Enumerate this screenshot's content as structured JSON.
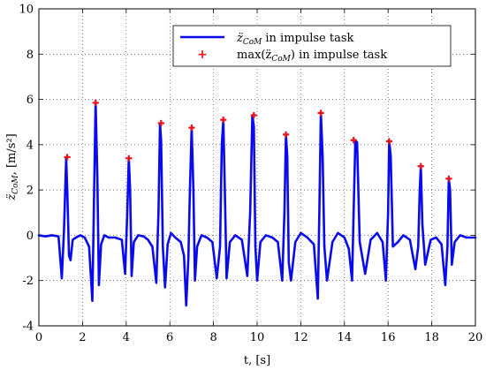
{
  "chart_data": {
    "type": "line",
    "title": "",
    "xlabel": "t, [s]",
    "ylabel": "z̈",
    "ylabel_sub": "CoM",
    "ylabel_unit": ", [m/s²]",
    "xlim": [
      0,
      20
    ],
    "ylim": [
      -4,
      10
    ],
    "xticks": [
      0,
      2,
      4,
      6,
      8,
      10,
      12,
      14,
      16,
      18,
      20
    ],
    "yticks": [
      -4,
      -2,
      0,
      2,
      4,
      6,
      8,
      10
    ],
    "grid": true,
    "legend_position": "top-right",
    "colors": {
      "line": "#0a0aef",
      "marker": "#e8121b",
      "grid": "#000000"
    },
    "series": [
      {
        "name": "z̈CoM in impulse task",
        "name_main": "z̈",
        "name_sub": "CoM",
        "name_rest": "in impulse task",
        "x": [
          0,
          0.3,
          0.6,
          0.9,
          1.05,
          1.15,
          1.25,
          1.3,
          1.38,
          1.45,
          1.55,
          1.7,
          1.9,
          2.1,
          2.3,
          2.45,
          2.55,
          2.6,
          2.68,
          2.75,
          2.85,
          3.0,
          3.2,
          3.5,
          3.8,
          3.95,
          4.05,
          4.12,
          4.18,
          4.25,
          4.35,
          4.55,
          4.8,
          5.0,
          5.2,
          5.38,
          5.48,
          5.55,
          5.6,
          5.68,
          5.78,
          5.9,
          6.05,
          6.25,
          6.5,
          6.65,
          6.75,
          6.85,
          6.92,
          7.0,
          7.08,
          7.15,
          7.25,
          7.45,
          7.7,
          7.95,
          8.15,
          8.3,
          8.38,
          8.45,
          8.52,
          8.6,
          8.75,
          9.0,
          9.3,
          9.55,
          9.68,
          9.78,
          9.85,
          9.92,
          10.0,
          10.15,
          10.4,
          10.7,
          10.95,
          11.15,
          11.25,
          11.32,
          11.38,
          11.45,
          11.55,
          11.75,
          12.0,
          12.3,
          12.6,
          12.78,
          12.85,
          12.92,
          13.0,
          13.08,
          13.2,
          13.45,
          13.7,
          14.0,
          14.2,
          14.35,
          14.42,
          14.5,
          14.58,
          14.7,
          14.95,
          15.2,
          15.5,
          15.75,
          15.9,
          16.0,
          16.05,
          16.12,
          16.22,
          16.45,
          16.7,
          17.0,
          17.25,
          17.38,
          17.45,
          17.5,
          17.57,
          17.7,
          17.95,
          18.2,
          18.45,
          18.62,
          18.72,
          18.78,
          18.84,
          18.92,
          19.05,
          19.3,
          19.6,
          20.0
        ],
        "y": [
          0,
          -0.05,
          0,
          -0.05,
          -1.9,
          0.2,
          3.4,
          2.0,
          -0.9,
          -1.1,
          -0.2,
          -0.1,
          0,
          -0.1,
          -0.5,
          -2.9,
          3.0,
          5.85,
          2.5,
          -2.2,
          -0.4,
          0,
          -0.1,
          -0.1,
          -0.2,
          -1.7,
          1.0,
          3.4,
          2.0,
          -1.8,
          -0.3,
          0,
          -0.05,
          -0.2,
          -0.5,
          -2.1,
          1.0,
          4.95,
          4.2,
          -0.5,
          -2.3,
          -0.4,
          0.1,
          -0.1,
          -0.3,
          -0.9,
          -3.1,
          -1.0,
          2.0,
          4.75,
          2.0,
          -2.0,
          -0.5,
          0,
          -0.1,
          -0.3,
          -1.9,
          -0.5,
          4.0,
          5.1,
          2.0,
          -1.9,
          -0.3,
          0,
          -0.2,
          -1.8,
          1.0,
          5.3,
          4.8,
          -0.5,
          -2.0,
          -0.3,
          0,
          -0.1,
          -0.3,
          -2.0,
          1.0,
          4.45,
          3.5,
          -1.2,
          -2.0,
          -0.3,
          0.1,
          -0.1,
          -0.4,
          -2.8,
          1.0,
          5.4,
          3.5,
          -0.5,
          -2.0,
          -0.3,
          0.1,
          -0.1,
          -0.6,
          -2.0,
          1.0,
          4.2,
          4.1,
          -0.3,
          -1.7,
          -0.2,
          0.1,
          -0.3,
          -2.0,
          1.0,
          4.15,
          3.5,
          -0.5,
          -0.3,
          0,
          -0.2,
          -1.5,
          -0.5,
          2.0,
          3.05,
          0.5,
          -1.3,
          -0.2,
          -0.1,
          -0.4,
          -2.2,
          -0.5,
          2.5,
          2.0,
          -1.3,
          -0.3,
          0,
          -0.1,
          -0.1
        ]
      },
      {
        "name": "max(z̈CoM) in impulse task",
        "name_main": "max(z̈",
        "name_sub": "CoM",
        "name_rest": ") in impulse task",
        "x": [
          1.3,
          2.6,
          4.12,
          5.6,
          7.0,
          8.45,
          9.85,
          11.32,
          12.92,
          14.42,
          16.05,
          17.5,
          18.78
        ],
        "y": [
          3.45,
          5.85,
          3.4,
          4.95,
          4.75,
          5.1,
          5.3,
          4.45,
          5.4,
          4.2,
          4.15,
          3.05,
          2.5
        ]
      }
    ]
  }
}
